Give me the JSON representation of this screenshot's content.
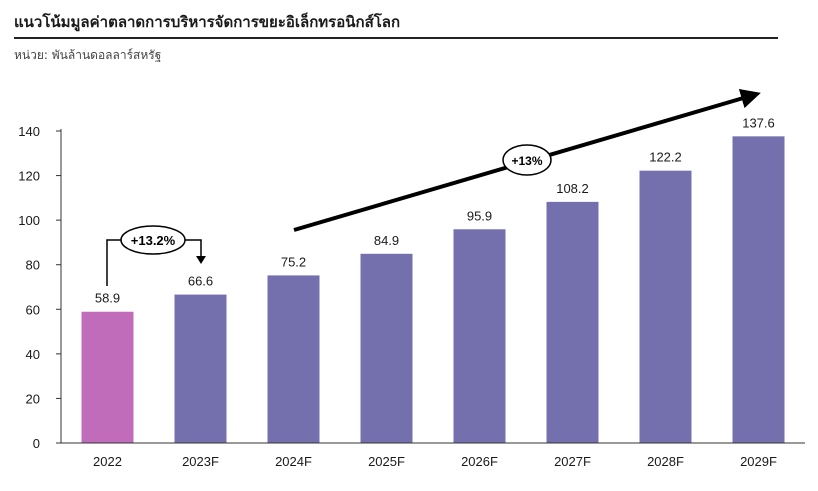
{
  "header": {
    "title": "แนวโน้มมูลค่าตลาดการบริหารจัดการขยะอิเล็กทรอนิกส์โลก",
    "unit": "หน่วย: พันล้านดอลลาร์สหรัฐ"
  },
  "colors": {
    "actual_bar": "#c06cba",
    "forecast_bar": "#7470ad",
    "axis": "#333333",
    "text": "#1a1a1a"
  },
  "annotations": {
    "short_growth": "+13.2%",
    "long_growth": "+13%"
  },
  "chart_data": {
    "type": "bar",
    "title": "แนวโน้มมูลค่าตลาดการบริหารจัดการขยะอิเล็กทรอนิกส์โลก",
    "ylabel": "หน่วย: พันล้านดอลลาร์สหรัฐ",
    "xlabel": "",
    "categories": [
      "2022",
      "2023F",
      "2024F",
      "2025F",
      "2026F",
      "2027F",
      "2028F",
      "2029F"
    ],
    "values": [
      58.9,
      66.6,
      75.2,
      84.9,
      95.9,
      108.2,
      122.2,
      137.6
    ],
    "value_labels": [
      "58.9",
      "66.6",
      "75.2",
      "84.9",
      "95.9",
      "108.2",
      "122.2",
      "137.6"
    ],
    "ylim": [
      0,
      140
    ],
    "yticks": [
      0,
      20,
      40,
      60,
      80,
      100,
      120,
      140
    ],
    "grid": false,
    "legend": "none"
  }
}
